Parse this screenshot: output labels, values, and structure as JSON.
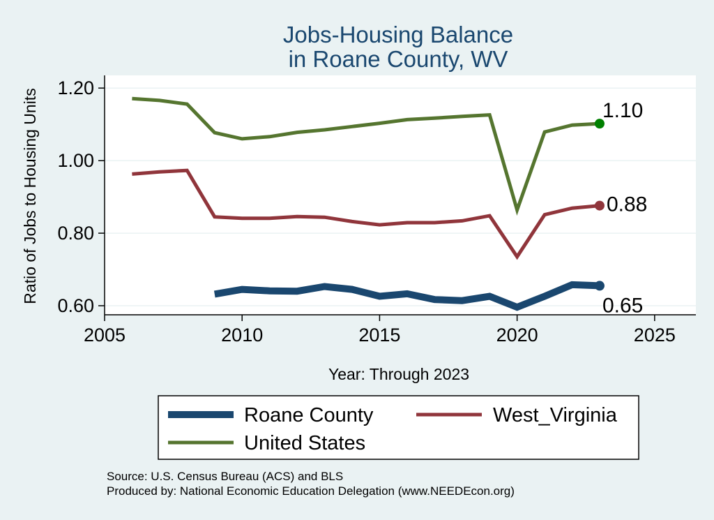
{
  "chart_data": {
    "type": "line",
    "title": [
      "Jobs-Housing Balance",
      "in Roane County, WV"
    ],
    "xlabel": "Year: Through 2023",
    "ylabel": "Ratio of Jobs to Housing Units",
    "xlim": [
      2005,
      2026.5
    ],
    "ylim": [
      0.575,
      1.235
    ],
    "xticks": [
      2005,
      2010,
      2015,
      2020,
      2025
    ],
    "yticks": [
      0.6,
      0.8,
      1.0,
      1.2
    ],
    "ytick_labels": [
      "0.60",
      "0.80",
      "1.00",
      "1.20"
    ],
    "grid": "horizontal",
    "legend_position": "bottom",
    "colors": {
      "background": "#eaf2f3",
      "plot_background": "#ffffff",
      "grid": "#eaf2f3",
      "title": "#1a476f",
      "endpoint_us": "#008000"
    },
    "series": [
      {
        "name": "Roane County",
        "color": "#1a476f",
        "stroke": 10,
        "x": [
          2009,
          2010,
          2011,
          2012,
          2013,
          2014,
          2015,
          2016,
          2017,
          2018,
          2019,
          2020,
          2021,
          2022,
          2023
        ],
        "y": [
          0.632,
          0.645,
          0.641,
          0.64,
          0.653,
          0.645,
          0.626,
          0.633,
          0.617,
          0.614,
          0.626,
          0.596,
          0.626,
          0.658,
          0.655
        ],
        "end_label": "0.65"
      },
      {
        "name": "West_Virginia",
        "color": "#90353b",
        "stroke": 5,
        "x": [
          2006,
          2007,
          2008,
          2009,
          2010,
          2011,
          2012,
          2013,
          2014,
          2015,
          2016,
          2017,
          2018,
          2019,
          2020,
          2021,
          2022,
          2023
        ],
        "y": [
          0.963,
          0.969,
          0.973,
          0.845,
          0.841,
          0.841,
          0.846,
          0.844,
          0.832,
          0.823,
          0.829,
          0.829,
          0.834,
          0.848,
          0.735,
          0.851,
          0.869,
          0.876
        ],
        "end_label": "0.88"
      },
      {
        "name": "United States",
        "color": "#55752f",
        "stroke": 5,
        "x": [
          2006,
          2007,
          2008,
          2009,
          2010,
          2011,
          2012,
          2013,
          2014,
          2015,
          2016,
          2017,
          2018,
          2019,
          2020,
          2021,
          2022,
          2023
        ],
        "y": [
          1.171,
          1.166,
          1.156,
          1.077,
          1.06,
          1.066,
          1.078,
          1.085,
          1.094,
          1.103,
          1.113,
          1.117,
          1.122,
          1.126,
          0.864,
          1.079,
          1.098,
          1.102
        ],
        "end_label": "1.10"
      }
    ]
  },
  "legend": {
    "items": [
      "Roane County",
      "West_Virginia",
      "United States"
    ]
  },
  "footer": {
    "source": "Source: U.S. Census Bureau (ACS) and BLS",
    "produced_by": "Produced by: National Economic Education Delegation (www.NEEDEcon.org)"
  }
}
